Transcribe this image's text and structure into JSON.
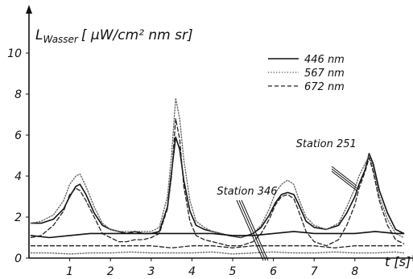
{
  "chart_data": {
    "type": "line",
    "title": "",
    "ylabel_base": "L",
    "ylabel_sub": "Wasser",
    "ylabel_units": "[ μW/cm² nm sr]",
    "xlabel": "t [s]",
    "xlim": [
      0,
      9.3
    ],
    "ylim": [
      0,
      11
    ],
    "x_ticks": [
      1,
      2,
      3,
      4,
      5,
      6,
      7,
      8
    ],
    "y_ticks": [
      0,
      2,
      4,
      6,
      8,
      10
    ],
    "grid": false,
    "legend_position": "top-right",
    "series": [
      {
        "name": "446 nm",
        "dash": "solid",
        "x": [
          0.05,
          0.3,
          0.6,
          0.85,
          1.0,
          1.15,
          1.25,
          1.4,
          1.6,
          1.8,
          2.0,
          2.2,
          2.4,
          2.6,
          2.8,
          3.0,
          3.2,
          3.4,
          3.5,
          3.6,
          3.7,
          3.8,
          3.95,
          4.1,
          4.3,
          4.5,
          4.7,
          4.9,
          5.2,
          5.5,
          5.7,
          5.9,
          6.05,
          6.2,
          6.35,
          6.5,
          6.6,
          6.8,
          7.0,
          7.3,
          7.6,
          7.8,
          8.0,
          8.1,
          8.25,
          8.35,
          8.45,
          8.6,
          8.8,
          9.0,
          9.2
        ],
        "y": [
          1.7,
          1.7,
          1.9,
          2.4,
          3.0,
          3.5,
          3.6,
          3.1,
          2.2,
          1.6,
          1.4,
          1.3,
          1.2,
          1.3,
          1.2,
          1.2,
          1.3,
          2.5,
          4.2,
          5.9,
          5.3,
          3.8,
          2.3,
          1.6,
          1.4,
          1.3,
          1.2,
          1.1,
          1.0,
          1.2,
          1.5,
          2.1,
          2.7,
          3.1,
          3.2,
          3.1,
          2.7,
          1.8,
          1.5,
          1.4,
          1.6,
          2.2,
          3.0,
          3.6,
          4.3,
          5.1,
          4.6,
          3.3,
          2.2,
          1.4,
          1.2
        ]
      },
      {
        "name": "567 nm",
        "dash": "dotted",
        "x": [
          0.05,
          0.3,
          0.6,
          0.85,
          1.0,
          1.15,
          1.25,
          1.4,
          1.6,
          1.8,
          2.0,
          2.2,
          2.4,
          2.6,
          2.8,
          3.0,
          3.2,
          3.4,
          3.5,
          3.6,
          3.7,
          3.8,
          3.95,
          4.1,
          4.3,
          4.5,
          4.7,
          4.9,
          5.2,
          5.5,
          5.7,
          5.9,
          6.05,
          6.2,
          6.35,
          6.5,
          6.6,
          6.8,
          7.0,
          7.3,
          7.6,
          7.8,
          8.0,
          8.1,
          8.25,
          8.35,
          8.45,
          8.6,
          8.8,
          9.0,
          9.2
        ],
        "y": [
          1.7,
          1.8,
          2.1,
          2.8,
          3.6,
          4.0,
          4.1,
          3.5,
          2.5,
          1.7,
          1.4,
          1.3,
          1.3,
          1.3,
          1.3,
          1.3,
          1.5,
          3.0,
          5.0,
          7.8,
          6.8,
          4.8,
          2.8,
          1.8,
          1.5,
          1.3,
          1.2,
          1.1,
          1.0,
          1.2,
          1.6,
          2.4,
          3.2,
          3.6,
          3.8,
          3.6,
          3.0,
          2.0,
          1.6,
          1.4,
          1.7,
          2.5,
          3.4,
          4.0,
          4.6,
          5.0,
          4.4,
          3.0,
          1.9,
          1.2,
          1.0
        ]
      },
      {
        "name": "672 nm",
        "dash": "dashed",
        "x": [
          0.05,
          0.3,
          0.6,
          0.85,
          1.0,
          1.15,
          1.25,
          1.4,
          1.6,
          1.8,
          2.0,
          2.2,
          2.4,
          2.6,
          2.8,
          3.0,
          3.2,
          3.4,
          3.5,
          3.6,
          3.7,
          3.8,
          3.95,
          4.1,
          4.3,
          4.5,
          4.7,
          4.9,
          5.2,
          5.5,
          5.7,
          5.9,
          6.05,
          6.2,
          6.35,
          6.5,
          6.6,
          6.8,
          7.0,
          7.3,
          7.6,
          7.8,
          8.0,
          8.1,
          8.25,
          8.35,
          8.45,
          8.6,
          8.8,
          9.0,
          9.2
        ],
        "y": [
          1.0,
          1.1,
          1.6,
          2.3,
          3.1,
          3.4,
          3.3,
          2.8,
          2.0,
          1.2,
          1.0,
          0.8,
          0.8,
          0.9,
          0.9,
          1.0,
          1.2,
          2.4,
          4.0,
          6.8,
          5.8,
          3.5,
          1.8,
          1.1,
          0.9,
          0.8,
          0.7,
          0.6,
          0.6,
          0.8,
          1.2,
          1.9,
          2.6,
          3.0,
          3.1,
          2.9,
          2.4,
          1.3,
          0.8,
          0.6,
          0.9,
          1.6,
          2.6,
          3.4,
          4.2,
          4.9,
          4.2,
          2.8,
          1.6,
          0.9,
          0.7
        ]
      },
      {
        "name": "",
        "dash": "solid",
        "x": [
          0.05,
          0.5,
          1.0,
          1.5,
          2.0,
          2.5,
          3.0,
          3.5,
          4.0,
          4.5,
          5.0,
          5.5,
          6.0,
          6.5,
          7.0,
          7.5,
          8.0,
          8.5,
          9.0,
          9.2
        ],
        "y": [
          1.1,
          1.0,
          1.1,
          1.2,
          1.2,
          1.2,
          1.2,
          1.2,
          1.2,
          1.2,
          1.1,
          1.1,
          1.2,
          1.3,
          1.2,
          1.2,
          1.2,
          1.3,
          1.2,
          1.2
        ]
      },
      {
        "name": "",
        "dash": "dashed",
        "x": [
          0.05,
          0.5,
          1.0,
          1.5,
          2.0,
          2.5,
          3.0,
          3.5,
          4.0,
          4.5,
          5.0,
          5.5,
          6.0,
          6.5,
          7.0,
          7.5,
          8.0,
          8.5,
          9.0,
          9.2
        ],
        "y": [
          0.6,
          0.6,
          0.6,
          0.6,
          0.6,
          0.6,
          0.6,
          0.5,
          0.6,
          0.6,
          0.5,
          0.6,
          0.6,
          0.6,
          0.6,
          0.5,
          0.6,
          0.6,
          0.6,
          0.6
        ]
      },
      {
        "name": "",
        "dash": "dotted",
        "x": [
          0.05,
          0.5,
          1.0,
          1.5,
          2.0,
          2.5,
          3.0,
          3.5,
          4.0,
          4.5,
          5.0,
          5.5,
          6.0,
          6.5,
          7.0,
          7.5,
          8.0,
          8.5,
          9.0,
          9.2
        ],
        "y": [
          0.25,
          0.25,
          0.2,
          0.25,
          0.25,
          0.3,
          0.25,
          0.25,
          0.25,
          0.3,
          0.2,
          0.25,
          0.3,
          0.25,
          0.25,
          0.3,
          0.25,
          0.25,
          0.3,
          0.25
        ]
      }
    ],
    "annotations": [
      {
        "text": "Station 346",
        "x": 5.6,
        "y": 3.3
      },
      {
        "text": "Station 251",
        "x": 7.7,
        "y": 5.6
      }
    ]
  }
}
